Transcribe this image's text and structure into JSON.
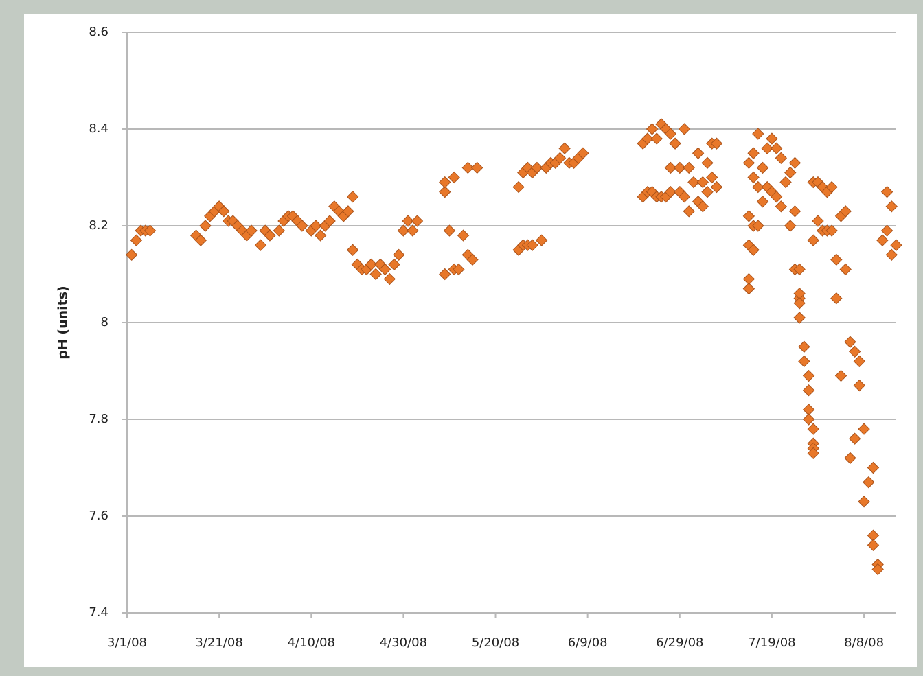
{
  "chart_data": {
    "type": "scatter",
    "y_label": "pH (units)",
    "color": "#e8782a",
    "stroke": "#a9521a",
    "grid": true,
    "xlim": [
      "3/1/08",
      "8/15/08"
    ],
    "xticks": [
      "3/1/08",
      "3/21/08",
      "4/10/08",
      "4/30/08",
      "5/20/08",
      "6/9/08",
      "6/29/08",
      "7/19/08",
      "8/8/08"
    ],
    "ylim": [
      7.4,
      8.6
    ],
    "yticks": [
      7.4,
      7.6,
      7.8,
      8,
      8.2,
      8.4,
      8.6
    ],
    "x": [
      "3/2/08",
      "3/3/08",
      "3/4/08",
      "3/5/08",
      "3/6/08",
      "3/16/08",
      "3/17/08",
      "3/18/08",
      "3/19/08",
      "3/20/08",
      "3/21/08",
      "3/22/08",
      "3/23/08",
      "3/24/08",
      "3/25/08",
      "3/26/08",
      "3/27/08",
      "3/28/08",
      "3/30/08",
      "3/31/08",
      "4/1/08",
      "4/3/08",
      "4/4/08",
      "4/5/08",
      "4/6/08",
      "4/7/08",
      "4/8/08",
      "4/10/08",
      "4/11/08",
      "4/12/08",
      "4/13/08",
      "4/14/08",
      "4/15/08",
      "4/16/08",
      "4/17/08",
      "4/18/08",
      "4/19/08",
      "4/19/08",
      "4/20/08",
      "4/21/08",
      "4/22/08",
      "4/23/08",
      "4/24/08",
      "4/25/08",
      "4/26/08",
      "4/27/08",
      "4/28/08",
      "4/29/08",
      "4/30/08",
      "5/1/08",
      "5/2/08",
      "5/3/08",
      "5/9/08",
      "5/9/08",
      "5/9/08",
      "5/10/08",
      "5/11/08",
      "5/11/08",
      "5/12/08",
      "5/13/08",
      "5/14/08",
      "5/14/08",
      "5/15/08",
      "5/16/08",
      "5/25/08",
      "5/25/08",
      "5/26/08",
      "5/26/08",
      "5/27/08",
      "5/27/08",
      "5/28/08",
      "5/28/08",
      "5/29/08",
      "5/30/08",
      "5/31/08",
      "6/1/08",
      "6/2/08",
      "6/3/08",
      "6/4/08",
      "6/5/08",
      "6/6/08",
      "6/7/08",
      "6/8/08",
      "6/21/08",
      "6/21/08",
      "6/22/08",
      "6/22/08",
      "6/23/08",
      "6/23/08",
      "6/24/08",
      "6/24/08",
      "6/25/08",
      "6/25/08",
      "6/26/08",
      "6/26/08",
      "6/27/08",
      "6/27/08",
      "6/27/08",
      "6/28/08",
      "6/29/08",
      "6/29/08",
      "6/30/08",
      "6/30/08",
      "7/1/08",
      "7/1/08",
      "7/2/08",
      "7/3/08",
      "7/3/08",
      "7/4/08",
      "7/4/08",
      "7/5/08",
      "7/5/08",
      "7/6/08",
      "7/6/08",
      "7/7/08",
      "7/7/08",
      "7/14/08",
      "7/14/08",
      "7/14/08",
      "7/14/08",
      "7/14/08",
      "7/15/08",
      "7/15/08",
      "7/15/08",
      "7/15/08",
      "7/16/08",
      "7/16/08",
      "7/16/08",
      "7/17/08",
      "7/17/08",
      "7/18/08",
      "7/18/08",
      "7/19/08",
      "7/19/08",
      "7/20/08",
      "7/20/08",
      "7/21/08",
      "7/21/08",
      "7/22/08",
      "7/23/08",
      "7/23/08",
      "7/24/08",
      "7/24/08",
      "7/24/08",
      "7/25/08",
      "7/25/08",
      "7/25/08",
      "7/25/08",
      "7/25/08",
      "7/25/08",
      "7/26/08",
      "7/26/08",
      "7/27/08",
      "7/27/08",
      "7/27/08",
      "7/27/08",
      "7/28/08",
      "7/28/08",
      "7/28/08",
      "7/28/08",
      "7/28/08",
      "7/28/08",
      "7/29/08",
      "7/29/08",
      "7/30/08",
      "7/30/08",
      "7/31/08",
      "7/31/08",
      "8/1/08",
      "8/1/08",
      "8/2/08",
      "8/2/08",
      "8/3/08",
      "8/3/08",
      "8/4/08",
      "8/4/08",
      "8/5/08",
      "8/5/08",
      "8/6/08",
      "8/6/08",
      "8/7/08",
      "8/7/08",
      "8/8/08",
      "8/8/08",
      "8/9/08",
      "8/10/08",
      "8/10/08",
      "8/10/08",
      "8/11/08",
      "8/11/08",
      "8/12/08",
      "8/13/08",
      "8/13/08",
      "8/14/08",
      "8/14/08",
      "8/15/08"
    ],
    "values": [
      8.14,
      8.17,
      8.19,
      8.19,
      8.19,
      8.18,
      8.17,
      8.2,
      8.22,
      8.23,
      8.24,
      8.23,
      8.21,
      8.21,
      8.2,
      8.19,
      8.18,
      8.19,
      8.16,
      8.19,
      8.18,
      8.19,
      8.21,
      8.22,
      8.22,
      8.21,
      8.2,
      8.19,
      8.2,
      8.18,
      8.2,
      8.21,
      8.24,
      8.23,
      8.22,
      8.23,
      8.26,
      8.15,
      8.12,
      8.11,
      8.11,
      8.12,
      8.1,
      8.12,
      8.11,
      8.09,
      8.12,
      8.14,
      8.19,
      8.21,
      8.19,
      8.21,
      8.27,
      8.29,
      8.1,
      8.19,
      8.3,
      8.11,
      8.11,
      8.18,
      8.32,
      8.14,
      8.13,
      8.32,
      8.28,
      8.15,
      8.31,
      8.16,
      8.32,
      8.16,
      8.31,
      8.16,
      8.32,
      8.17,
      8.32,
      8.33,
      8.33,
      8.34,
      8.36,
      8.33,
      8.33,
      8.34,
      8.35,
      8.37,
      8.26,
      8.38,
      8.27,
      8.4,
      8.27,
      8.38,
      8.26,
      8.41,
      8.26,
      8.4,
      8.26,
      8.39,
      8.27,
      8.32,
      8.37,
      8.32,
      8.27,
      8.4,
      8.26,
      8.32,
      8.23,
      8.29,
      8.35,
      8.25,
      8.24,
      8.29,
      8.33,
      8.27,
      8.37,
      8.3,
      8.37,
      8.28,
      8.33,
      8.22,
      8.16,
      8.09,
      8.07,
      8.35,
      8.3,
      8.2,
      8.15,
      8.39,
      8.28,
      8.2,
      8.32,
      8.25,
      8.36,
      8.28,
      8.38,
      8.27,
      8.36,
      8.26,
      8.34,
      8.24,
      8.29,
      8.31,
      8.2,
      8.33,
      8.23,
      8.11,
      8.11,
      8.05,
      8.01,
      8.06,
      8.04,
      8.01,
      7.95,
      7.92,
      7.89,
      7.86,
      7.82,
      7.8,
      7.78,
      7.75,
      7.74,
      7.73,
      8.29,
      8.17,
      8.29,
      8.21,
      8.28,
      8.19,
      8.27,
      8.19,
      8.28,
      8.19,
      8.13,
      8.05,
      8.22,
      7.89,
      8.23,
      8.11,
      7.96,
      7.72,
      7.94,
      7.76,
      7.92,
      7.87,
      7.78,
      7.63,
      7.67,
      7.7,
      7.56,
      7.54,
      7.5,
      7.49,
      8.17,
      8.27,
      8.19,
      8.14,
      8.24,
      8.16
    ]
  }
}
